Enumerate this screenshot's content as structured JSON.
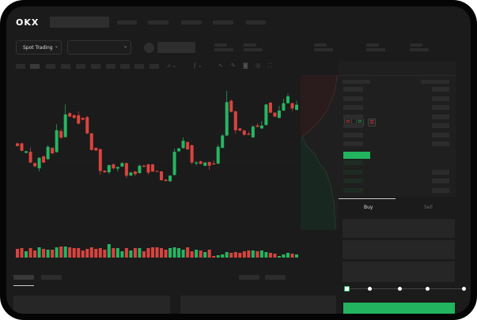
{
  "header": {
    "logo": "OKX"
  },
  "toolbar": {
    "market_select": "Spot Trading",
    "pair_select": "",
    "chevron": "⌄"
  },
  "orderbook": {
    "icons": [
      "book-both-icon",
      "book-bids-icon",
      "book-asks-icon"
    ]
  },
  "trade_panel": {
    "buy_tab": "Buy",
    "sell_tab": "Sell",
    "slider_percent": 0
  },
  "colors": {
    "up": "#26b562",
    "down": "#d9443f",
    "background": "#1b1b1b",
    "accent": "#22b45f"
  },
  "chart_data": {
    "type": "candlestick",
    "ylim": [
      600,
      1000
    ],
    "candles": [
      [
        755,
        745,
        758,
        742
      ],
      [
        755,
        727,
        758,
        725
      ],
      [
        719,
        725,
        727,
        717
      ],
      [
        723,
        682,
        740,
        680
      ],
      [
        680,
        668,
        682,
        664
      ],
      [
        660,
        700,
        702,
        648
      ],
      [
        706,
        682,
        708,
        680
      ],
      [
        695,
        742,
        748,
        692
      ],
      [
        738,
        717,
        740,
        714
      ],
      [
        722,
        805,
        828,
        720
      ],
      [
        802,
        776,
        810,
        774
      ],
      [
        779,
        865,
        903,
        777
      ],
      [
        870,
        857,
        874,
        855
      ],
      [
        862,
        852,
        866,
        848
      ],
      [
        862,
        830,
        876,
        828
      ],
      [
        852,
        845,
        854,
        843
      ],
      [
        855,
        793,
        860,
        790
      ],
      [
        793,
        730,
        795,
        728
      ],
      [
        738,
        728,
        740,
        726
      ],
      [
        733,
        650,
        735,
        636
      ],
      [
        651,
        645,
        653,
        643
      ],
      [
        645,
        672,
        674,
        638
      ],
      [
        675,
        660,
        680,
        655
      ],
      [
        659,
        665,
        667,
        648
      ],
      [
        667,
        680,
        684,
        665
      ],
      [
        680,
        632,
        682,
        622
      ],
      [
        633,
        644,
        646,
        630
      ],
      [
        648,
        638,
        650,
        630
      ],
      [
        642,
        670,
        674,
        640
      ],
      [
        670,
        666,
        674,
        664
      ],
      [
        675,
        644,
        677,
        636
      ],
      [
        675,
        648,
        677,
        646
      ],
      [
        650,
        648,
        652,
        646
      ],
      [
        648,
        615,
        650,
        613
      ],
      [
        617,
        612,
        619,
        610
      ],
      [
        611,
        632,
        634,
        608
      ],
      [
        635,
        723,
        735,
        632
      ],
      [
        725,
        736,
        738,
        723
      ],
      [
        737,
        765,
        778,
        735
      ],
      [
        760,
        732,
        762,
        730
      ],
      [
        748,
        682,
        750,
        675
      ],
      [
        678,
        682,
        688,
        670
      ],
      [
        687,
        677,
        689,
        675
      ],
      [
        670,
        682,
        684,
        668
      ],
      [
        684,
        670,
        686,
        655
      ],
      [
        679,
        675,
        690,
        673
      ],
      [
        678,
        742,
        750,
        676
      ],
      [
        738,
        785,
        790,
        736
      ],
      [
        785,
        912,
        955,
        783
      ],
      [
        917,
        875,
        922,
        873
      ],
      [
        877,
        805,
        879,
        792
      ],
      [
        812,
        804,
        814,
        800
      ],
      [
        804,
        788,
        806,
        784
      ],
      [
        792,
        788,
        800,
        786
      ],
      [
        778,
        819,
        825,
        776
      ],
      [
        823,
        818,
        832,
        816
      ],
      [
        812,
        823,
        840,
        810
      ],
      [
        825,
        903,
        905,
        823
      ],
      [
        910,
        872,
        912,
        870
      ],
      [
        872,
        857,
        874,
        855
      ],
      [
        852,
        880,
        898,
        850
      ],
      [
        880,
        908,
        925,
        878
      ],
      [
        908,
        934,
        945,
        906
      ],
      [
        908,
        888,
        910,
        878
      ],
      [
        883,
        902,
        918,
        880
      ]
    ],
    "volume": [
      11,
      12,
      8,
      12,
      9,
      13,
      11,
      10,
      10,
      13,
      14,
      14,
      13,
      12,
      12,
      9,
      11,
      13,
      11,
      12,
      10,
      17,
      12,
      12,
      8,
      12,
      9,
      12,
      12,
      8,
      12,
      13,
      13,
      12,
      10,
      12,
      13,
      12,
      10,
      13,
      8,
      10,
      9,
      7,
      10,
      2,
      3,
      4,
      7,
      6,
      7,
      6,
      8,
      9,
      9,
      8,
      9,
      7,
      6,
      5,
      2,
      4,
      6,
      5,
      4
    ]
  }
}
